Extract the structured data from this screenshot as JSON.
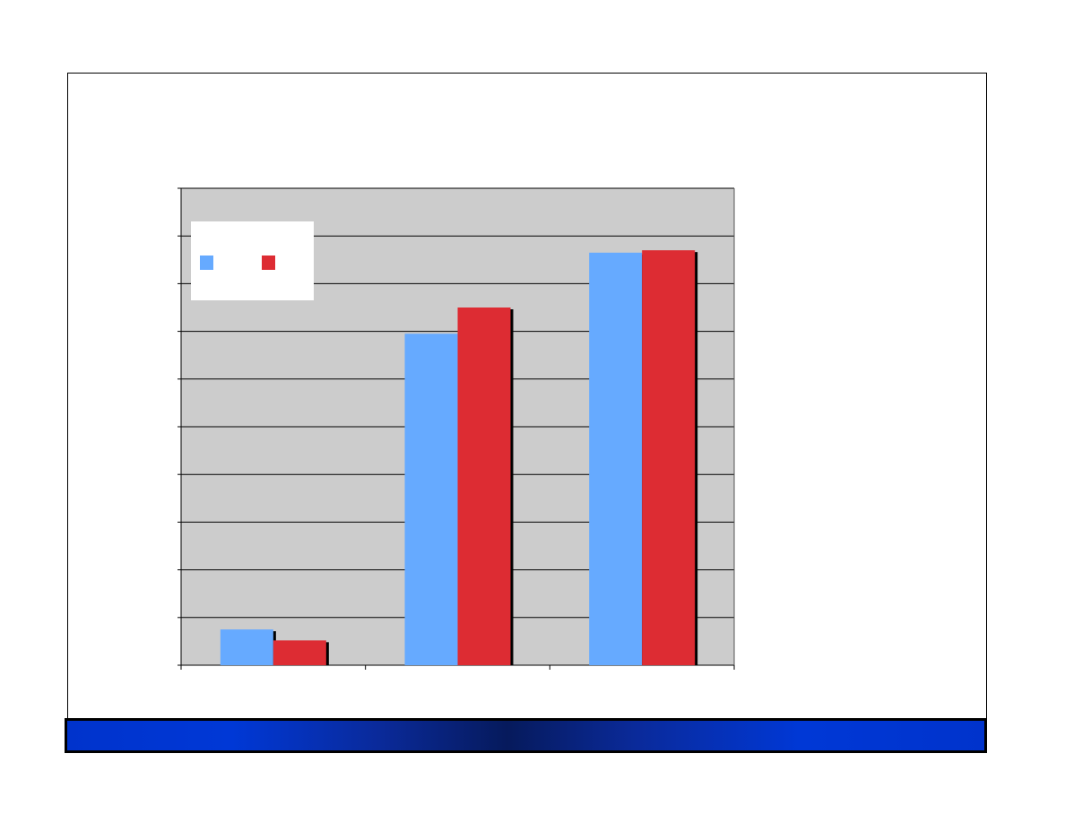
{
  "colors": {
    "plot_background": "#cccccc",
    "gridline": "#000000",
    "series_1": "#66aaff",
    "series_2": "#dd2c33",
    "footer_bar": "#0033cc"
  },
  "chart_data": {
    "type": "bar",
    "categories": [
      "",
      "",
      ""
    ],
    "series": [
      {
        "values": [
          0.75,
          6.95,
          8.65
        ]
      },
      {
        "values": [
          0.52,
          7.5,
          8.7
        ]
      }
    ],
    "ylim": [
      0,
      10
    ],
    "grid": true,
    "legend": "top-left",
    "title": "",
    "xlabel": "",
    "ylabel": ""
  }
}
